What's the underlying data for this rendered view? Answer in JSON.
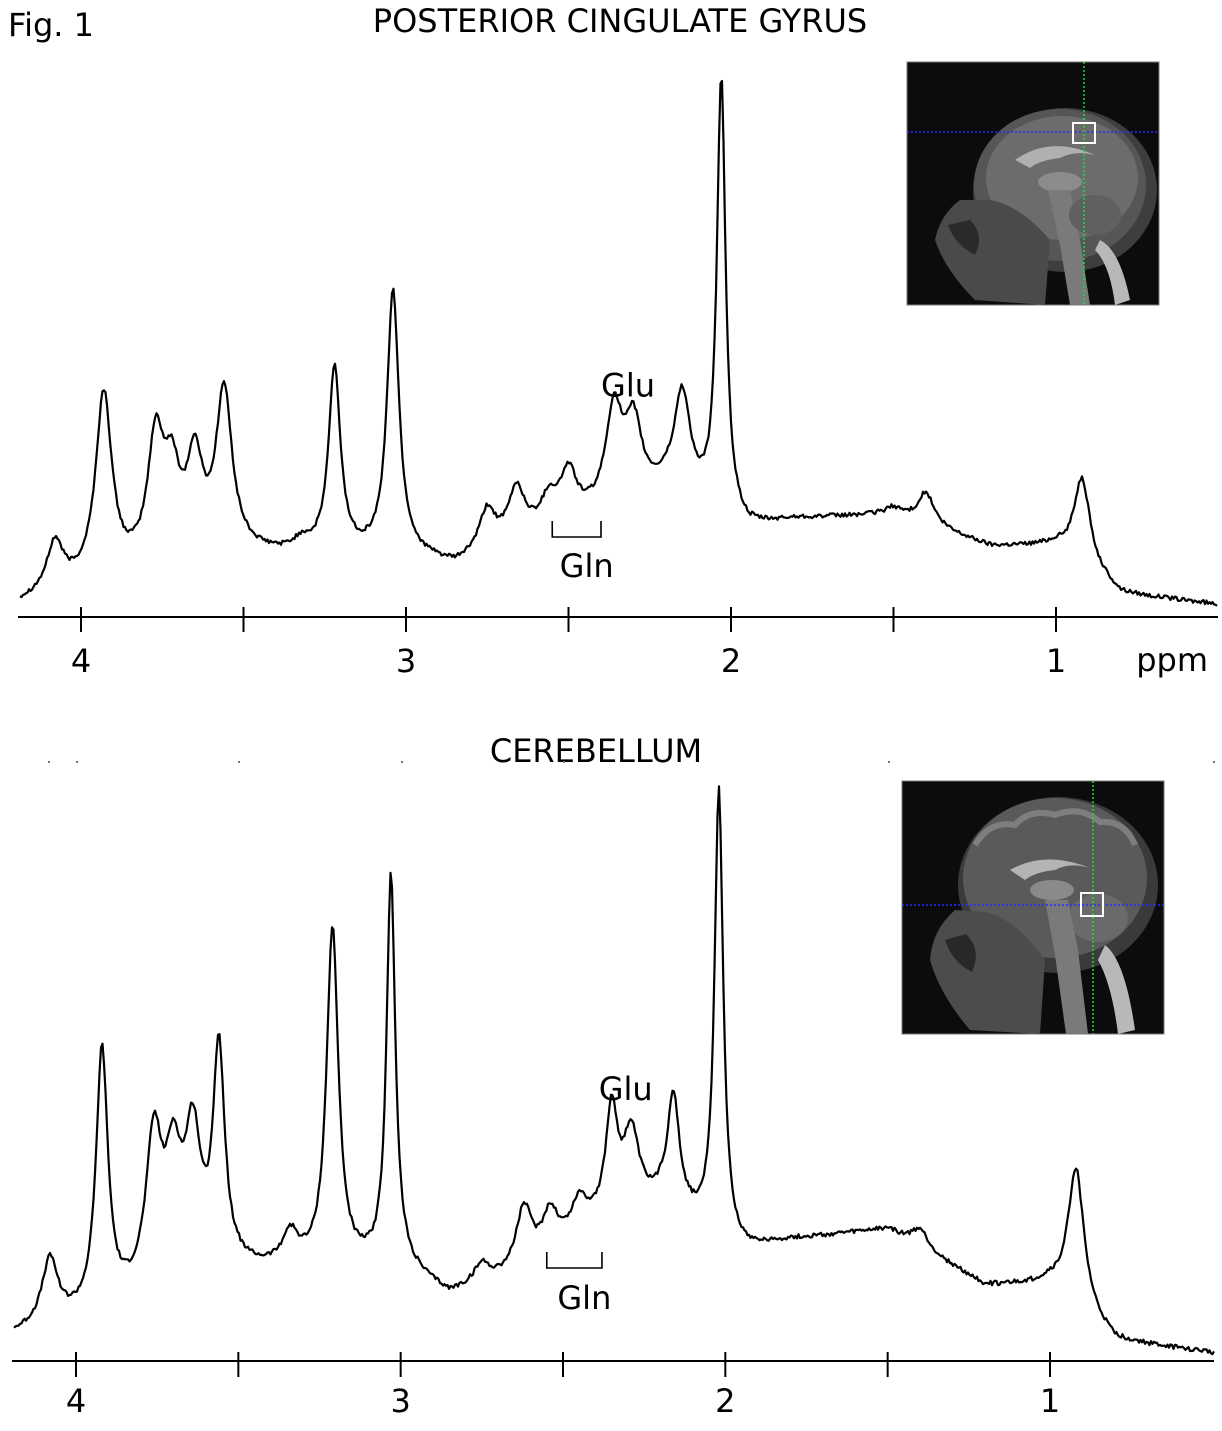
{
  "figure_label": "Fig. 1",
  "chart_data": [
    {
      "type": "line",
      "title": "POSTERIOR CINGULATE GYRUS",
      "xlabel": "ppm",
      "ylabel": "",
      "x_reversed": true,
      "xlim": [
        4.2,
        0.5
      ],
      "xticks_major": [
        4,
        3,
        2,
        1
      ],
      "xticks_minor": [
        3.5,
        2.5,
        1.5
      ],
      "grid": false,
      "peaks": [
        {
          "ppm": 4.08,
          "h": 0.12
        },
        {
          "ppm": 3.93,
          "h": 0.4
        },
        {
          "ppm": 3.77,
          "h": 0.3
        },
        {
          "ppm": 3.72,
          "h": 0.22
        },
        {
          "ppm": 3.65,
          "h": 0.26
        },
        {
          "ppm": 3.56,
          "h": 0.4
        },
        {
          "ppm": 3.4,
          "h": 0.1
        },
        {
          "ppm": 3.32,
          "h": 0.12
        },
        {
          "ppm": 3.22,
          "h": 0.45
        },
        {
          "ppm": 3.04,
          "h": 0.6
        },
        {
          "ppm": 2.75,
          "h": 0.18
        },
        {
          "ppm": 2.66,
          "h": 0.22
        },
        {
          "ppm": 2.56,
          "h": 0.2
        },
        {
          "ppm": 2.5,
          "h": 0.25
        },
        {
          "ppm": 2.36,
          "h": 0.37
        },
        {
          "ppm": 2.3,
          "h": 0.34
        },
        {
          "ppm": 2.15,
          "h": 0.4
        },
        {
          "ppm": 2.03,
          "h": 1.0
        },
        {
          "ppm": 1.5,
          "h": 0.19
        },
        {
          "ppm": 1.4,
          "h": 0.22
        },
        {
          "ppm": 1.05,
          "h": 0.1
        },
        {
          "ppm": 0.92,
          "h": 0.25
        }
      ],
      "annotations": [
        {
          "text": "Glu",
          "ppm": 2.36
        },
        {
          "text": "Gln",
          "ppm_range": [
            2.55,
            2.4
          ]
        }
      ],
      "show_xlabel": true
    },
    {
      "type": "line",
      "title": "CEREBELLUM",
      "xlabel": "",
      "ylabel": "",
      "x_reversed": true,
      "xlim": [
        4.2,
        0.5
      ],
      "xticks_major": [
        4,
        3,
        2,
        1
      ],
      "xticks_minor": [
        3.5,
        2.5,
        1.5
      ],
      "grid": false,
      "peaks": [
        {
          "ppm": 4.08,
          "h": 0.16
        },
        {
          "ppm": 3.92,
          "h": 0.53
        },
        {
          "ppm": 3.76,
          "h": 0.36
        },
        {
          "ppm": 3.7,
          "h": 0.3
        },
        {
          "ppm": 3.64,
          "h": 0.36
        },
        {
          "ppm": 3.56,
          "h": 0.52
        },
        {
          "ppm": 3.44,
          "h": 0.14
        },
        {
          "ppm": 3.34,
          "h": 0.2
        },
        {
          "ppm": 3.21,
          "h": 0.75
        },
        {
          "ppm": 3.03,
          "h": 0.85
        },
        {
          "ppm": 2.75,
          "h": 0.15
        },
        {
          "ppm": 2.62,
          "h": 0.25
        },
        {
          "ppm": 2.54,
          "h": 0.24
        },
        {
          "ppm": 2.45,
          "h": 0.26
        },
        {
          "ppm": 2.35,
          "h": 0.42
        },
        {
          "ppm": 2.29,
          "h": 0.38
        },
        {
          "ppm": 2.16,
          "h": 0.45
        },
        {
          "ppm": 2.02,
          "h": 1.0
        },
        {
          "ppm": 1.4,
          "h": 0.22
        },
        {
          "ppm": 1.25,
          "h": 0.12
        },
        {
          "ppm": 0.92,
          "h": 0.33
        }
      ],
      "annotations": [
        {
          "text": "Glu",
          "ppm": 2.35
        },
        {
          "text": "Gln",
          "ppm_range": [
            2.55,
            2.38
          ]
        }
      ],
      "show_xlabel": false
    }
  ],
  "insets": [
    {
      "kind": "sagittal-mri-localizer",
      "voxel_region": "posterior cingulate gyrus",
      "crosshair_h": "#2a2aff",
      "crosshair_v": "#22dd22",
      "voxel_box": "#ffffff"
    },
    {
      "kind": "sagittal-mri-localizer",
      "voxel_region": "cerebellum",
      "crosshair_h": "#2a2aff",
      "crosshair_v": "#22dd22",
      "voxel_box": "#ffffff"
    }
  ]
}
